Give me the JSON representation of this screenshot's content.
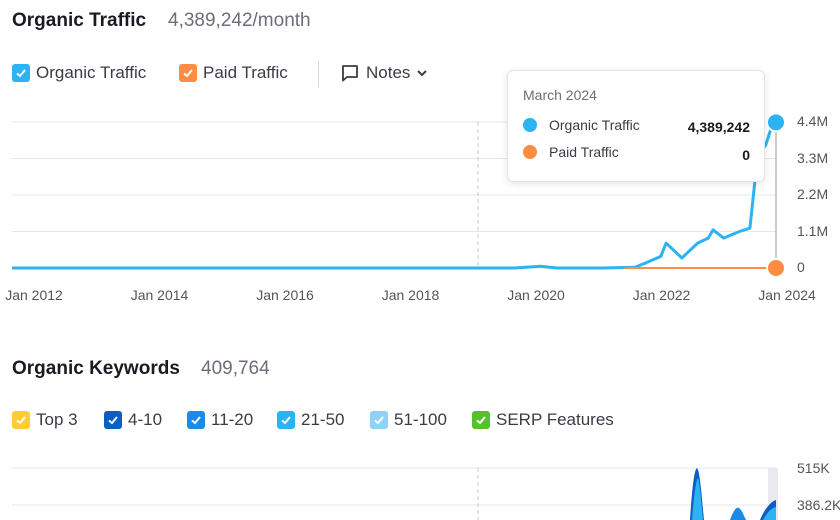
{
  "traffic": {
    "title": "Organic Traffic",
    "metric": "4,389,242/month",
    "legend": [
      {
        "label": "Organic Traffic",
        "color": "#2bb3f3",
        "checked": true
      },
      {
        "label": "Paid Traffic",
        "color": "#ff8c43",
        "checked": true
      }
    ],
    "notes_label": "Notes",
    "tooltip": {
      "month": "March 2024",
      "rows": [
        {
          "label": "Organic Traffic",
          "value": "4,389,242",
          "color": "#2bb3f3"
        },
        {
          "label": "Paid Traffic",
          "value": "0",
          "color": "#ff8c43"
        }
      ]
    }
  },
  "keywords": {
    "title": "Organic Keywords",
    "metric": "409,764",
    "legend": [
      {
        "label": "Top 3",
        "color": "#ffcc33",
        "checked": true
      },
      {
        "label": "4-10",
        "color": "#0a5fc2",
        "checked": true
      },
      {
        "label": "11-20",
        "color": "#1a8be6",
        "checked": true
      },
      {
        "label": "21-50",
        "color": "#2bb3f3",
        "checked": true
      },
      {
        "label": "51-100",
        "color": "#8dd3f8",
        "checked": true
      },
      {
        "label": "SERP Features",
        "color": "#55c12c",
        "checked": true
      }
    ]
  },
  "chart_data": [
    {
      "type": "line",
      "title": "Organic Traffic",
      "y_ticks": [
        "4.4M",
        "3.3M",
        "2.2M",
        "1.1M",
        "0"
      ],
      "x_ticks": [
        "Jan 2012",
        "Jan 2014",
        "Jan 2016",
        "Jan 2018",
        "Jan 2020",
        "Jan 2022",
        "Jan 2024"
      ],
      "ylim": [
        0,
        4400000
      ],
      "series": [
        {
          "name": "Organic Traffic",
          "color": "#2bb3f3",
          "x": [
            "2012-01",
            "2016-01",
            "2019-06",
            "2020-01",
            "2020-06",
            "2020-09",
            "2021-06",
            "2021-12",
            "2022-02",
            "2022-05",
            "2022-06",
            "2022-09",
            "2022-12",
            "2023-02",
            "2023-03",
            "2023-05",
            "2023-08",
            "2023-10",
            "2023-11",
            "2023-12",
            "2024-01",
            "2024-02",
            "2024-03"
          ],
          "values": [
            0,
            0,
            0,
            0,
            50000,
            0,
            0,
            20000,
            150000,
            350000,
            750000,
            300000,
            750000,
            900000,
            1150000,
            900000,
            1100000,
            1200000,
            2700000,
            3500000,
            3700000,
            4200000,
            4389242
          ]
        },
        {
          "name": "Paid Traffic",
          "color": "#ff8c43",
          "x": [
            "2021-10",
            "2024-03"
          ],
          "values": [
            0,
            0
          ]
        }
      ]
    },
    {
      "type": "area",
      "title": "Organic Keywords",
      "y_ticks": [
        "515K",
        "386.2K"
      ],
      "ylim": [
        0,
        515000
      ]
    }
  ]
}
